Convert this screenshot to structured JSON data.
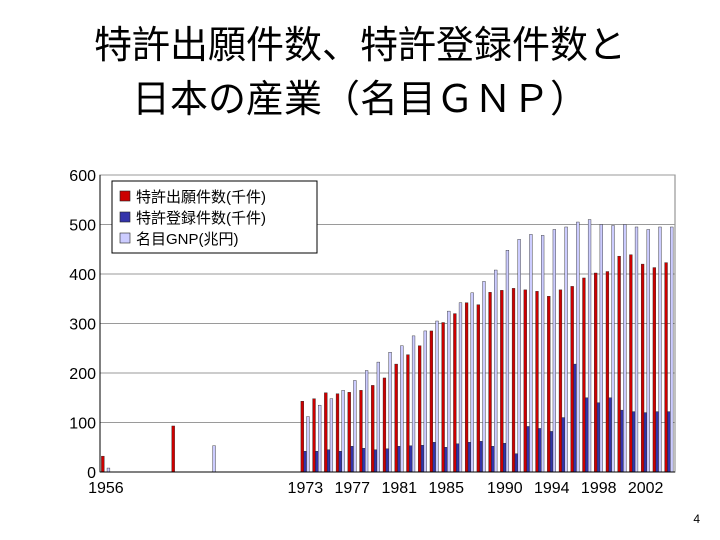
{
  "slide": {
    "title_line1": "特許出願件数、特許登録件数と",
    "title_line2": "日本の産業（名目ＧＮＰ）",
    "page_number": "4"
  },
  "colors": {
    "applications": "#cc0000",
    "registrations": "#3333aa",
    "gnp": "#ccccff"
  },
  "chart_data": {
    "type": "bar",
    "title": "",
    "xlabel": "",
    "ylabel": "",
    "ylim": [
      0,
      600
    ],
    "yticks": [
      0,
      100,
      200,
      300,
      400,
      500,
      600
    ],
    "grid": true,
    "legend_position": "top-left",
    "categories": [
      "1956",
      "1957",
      "1958",
      "1959",
      "1960",
      "1961",
      "1962",
      "1963",
      "1964",
      "1965",
      "1966",
      "1967",
      "1968",
      "1969",
      "1970",
      "1971",
      "1972",
      "1973",
      "1974",
      "1975",
      "1976",
      "1977",
      "1978",
      "1979",
      "1980",
      "1981",
      "1982",
      "1983",
      "1984",
      "1985",
      "1986",
      "1987",
      "1988",
      "1989",
      "1990",
      "1991",
      "1992",
      "1993",
      "1994",
      "1995",
      "1996",
      "1997",
      "1998",
      "1999",
      "2000",
      "2001",
      "2002",
      "2003",
      "2004"
    ],
    "x_tick_labels": [
      "1956",
      "1973",
      "1977",
      "1981",
      "1985",
      "1990",
      "1994",
      "1998",
      "2002"
    ],
    "series": [
      {
        "name": "特許出願件数(千件)",
        "values": [
          32,
          null,
          null,
          null,
          null,
          null,
          null,
          null,
          null,
          null,
          null,
          null,
          null,
          null,
          null,
          null,
          null,
          143,
          148,
          160,
          158,
          161,
          165,
          175,
          190,
          218,
          237,
          255,
          285,
          302,
          320,
          342,
          338,
          363,
          367,
          371,
          368,
          365,
          355,
          368,
          375,
          392,
          402,
          405,
          436,
          439,
          420,
          413,
          423
        ]
      },
      {
        "name": "特許登録件数(千件)",
        "values": [
          null,
          null,
          null,
          null,
          null,
          null,
          null,
          null,
          null,
          null,
          null,
          null,
          null,
          null,
          null,
          null,
          null,
          42,
          42,
          45,
          42,
          52,
          48,
          45,
          47,
          52,
          53,
          54,
          60,
          50,
          57,
          60,
          62,
          52,
          58,
          37,
          92,
          88,
          82,
          110,
          218,
          150,
          140,
          150,
          125,
          122,
          120,
          122,
          122
        ]
      },
      {
        "name": "名目GNP(兆円)",
        "values": [
          8,
          null,
          null,
          null,
          null,
          null,
          null,
          null,
          null,
          null,
          null,
          null,
          null,
          null,
          null,
          null,
          null,
          112,
          135,
          148,
          165,
          185,
          205,
          222,
          242,
          255,
          275,
          285,
          305,
          325,
          342,
          362,
          385,
          408,
          448,
          470,
          480,
          478,
          490,
          495,
          505,
          510,
          500,
          498,
          500,
          495,
          490,
          495,
          495
        ]
      }
    ],
    "extra_bars": [
      {
        "series": "特許出願件数(千件)",
        "label": "1962",
        "value": 93
      },
      {
        "series": "名目GNP(兆円)",
        "label": "1965",
        "value": 53
      }
    ]
  }
}
